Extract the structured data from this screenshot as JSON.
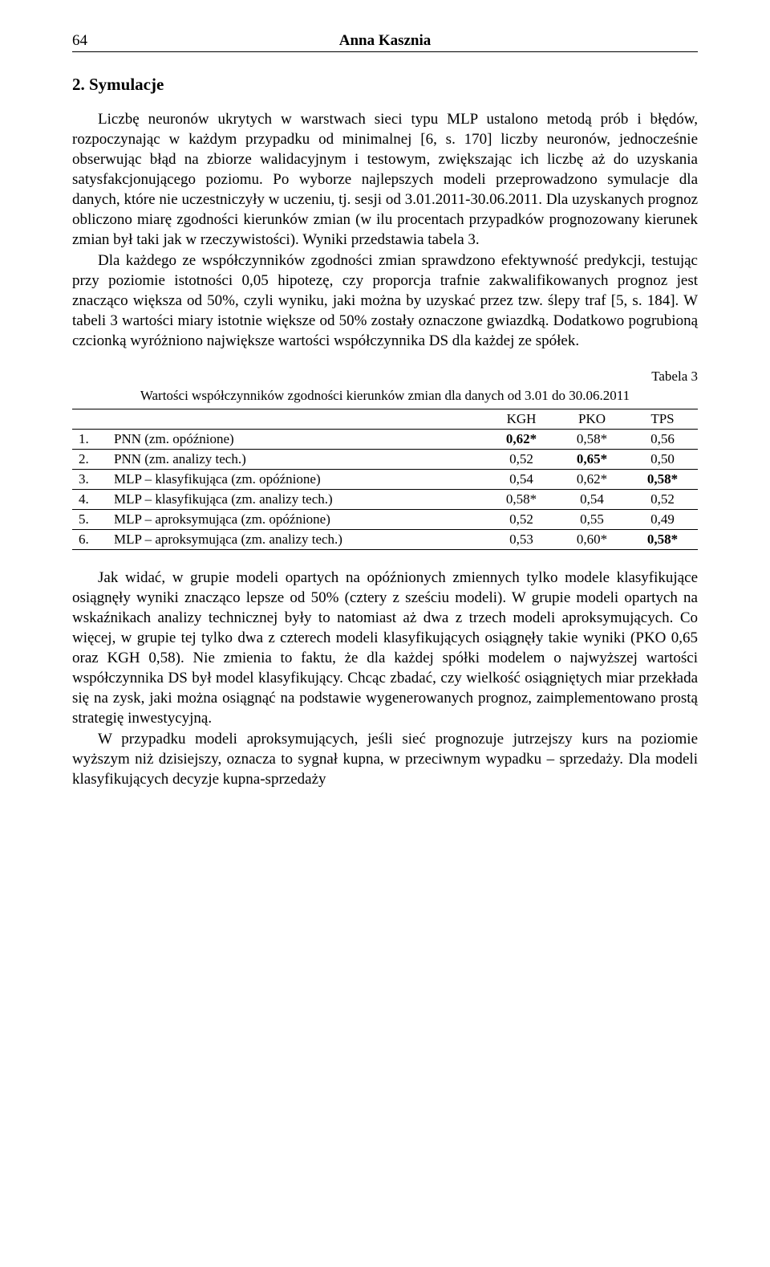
{
  "header": {
    "page_number": "64",
    "author": "Anna Kasznia"
  },
  "section": {
    "heading": "2. Symulacje"
  },
  "paragraphs": {
    "p1": "Liczbę neuronów ukrytych w warstwach sieci typu MLP ustalono metodą prób i błędów, rozpoczynając w każdym przypadku od minimalnej [6, s. 170] liczby neuronów, jednocześnie obserwując błąd na zbiorze walidacyjnym i testowym, zwiększając ich liczbę aż do uzyskania satysfakcjonującego poziomu. Po wyborze najlepszych modeli przeprowadzono symulacje dla danych, które nie uczestniczyły w uczeniu, tj. sesji od 3.01.2011-30.06.2011. Dla uzyskanych prognoz obliczono miarę zgodności kierunków zmian (w ilu procentach przypadków prognozowany kierunek zmian był taki jak w rzeczywistości). Wyniki przedstawia tabela 3.",
    "p2": "Dla każdego ze współczynników zgodności zmian sprawdzono efektywność predykcji, testując przy poziomie istotności 0,05 hipotezę, czy proporcja trafnie zakwalifikowanych prognoz jest znacząco większa od 50%, czyli wyniku, jaki można by uzyskać przez tzw. ślepy traf [5, s. 184]. W tabeli 3 wartości miary istotnie większe od 50% zostały oznaczone gwiazdką. Dodatkowo pogrubioną czcionką wyróżniono największe wartości współczynnika DS dla każdej ze spółek.",
    "p3": "Jak widać, w grupie modeli opartych na opóźnionych zmiennych tylko modele klasyfikujące osiągnęły wyniki znacząco lepsze od 50% (cztery z sześciu modeli). W grupie modeli opartych na wskaźnikach analizy technicznej były to natomiast aż dwa z trzech modeli aproksymujących. Co więcej, w grupie tej tylko dwa z czterech modeli klasyfikujących osiągnęły takie wyniki (PKO 0,65 oraz KGH 0,58). Nie zmienia to faktu, że dla każdej spółki modelem o najwyższej wartości współczynnika DS był model klasyfikujący. Chcąc zbadać, czy wielkość osiągniętych miar przekłada się na zysk, jaki można osiągnąć na podstawie wygenerowanych prognoz, zaimplementowano prostą strategię inwestycyjną.",
    "p4": "W przypadku modeli aproksymujących, jeśli sieć prognozuje jutrzejszy kurs na poziomie wyższym niż dzisiejszy, oznacza to sygnał kupna, w przeciwnym wypadku – sprzedaży. Dla modeli klasyfikujących decyzje kupna-sprzedaży"
  },
  "table": {
    "label": "Tabela 3",
    "caption": "Wartości współczynników zgodności kierunków zmian dla danych od 3.01 do 30.06.2011",
    "columns": [
      "",
      "",
      "KGH",
      "PKO",
      "TPS"
    ],
    "rows": [
      {
        "idx": "1.",
        "label": "PNN (zm. opóźnione)",
        "kgh": {
          "v": "0,62*",
          "b": true
        },
        "pko": {
          "v": "0,58*",
          "b": false
        },
        "tps": {
          "v": "0,56",
          "b": false
        }
      },
      {
        "idx": "2.",
        "label": "PNN (zm. analizy tech.)",
        "kgh": {
          "v": "0,52",
          "b": false
        },
        "pko": {
          "v": "0,65*",
          "b": true
        },
        "tps": {
          "v": "0,50",
          "b": false
        }
      },
      {
        "idx": "3.",
        "label": "MLP – klasyfikująca (zm. opóźnione)",
        "kgh": {
          "v": "0,54",
          "b": false
        },
        "pko": {
          "v": "0,62*",
          "b": false
        },
        "tps": {
          "v": "0,58*",
          "b": true
        }
      },
      {
        "idx": "4.",
        "label": "MLP – klasyfikująca (zm. analizy tech.)",
        "kgh": {
          "v": "0,58*",
          "b": false
        },
        "pko": {
          "v": "0,54",
          "b": false
        },
        "tps": {
          "v": "0,52",
          "b": false
        }
      },
      {
        "idx": "5.",
        "label": "MLP – aproksymująca (zm. opóźnione)",
        "kgh": {
          "v": "0,52",
          "b": false
        },
        "pko": {
          "v": "0,55",
          "b": false
        },
        "tps": {
          "v": "0,49",
          "b": false
        }
      },
      {
        "idx": "6.",
        "label": "MLP – aproksymująca (zm. analizy tech.)",
        "kgh": {
          "v": "0,53",
          "b": false
        },
        "pko": {
          "v": "0,60*",
          "b": false
        },
        "tps": {
          "v": "0,58*",
          "b": true
        }
      }
    ],
    "styling": {
      "font_size": 17,
      "border_color": "#000000",
      "cell_padding_v": 2,
      "cell_padding_h": 8,
      "num_col_width": 72,
      "idx_col_width": 28
    }
  },
  "colors": {
    "text": "#000000",
    "background": "#ffffff",
    "rule": "#000000"
  },
  "typography": {
    "body_font": "Times New Roman",
    "body_size": 19,
    "heading_size": 21,
    "line_height": 1.32,
    "indent": 32
  }
}
